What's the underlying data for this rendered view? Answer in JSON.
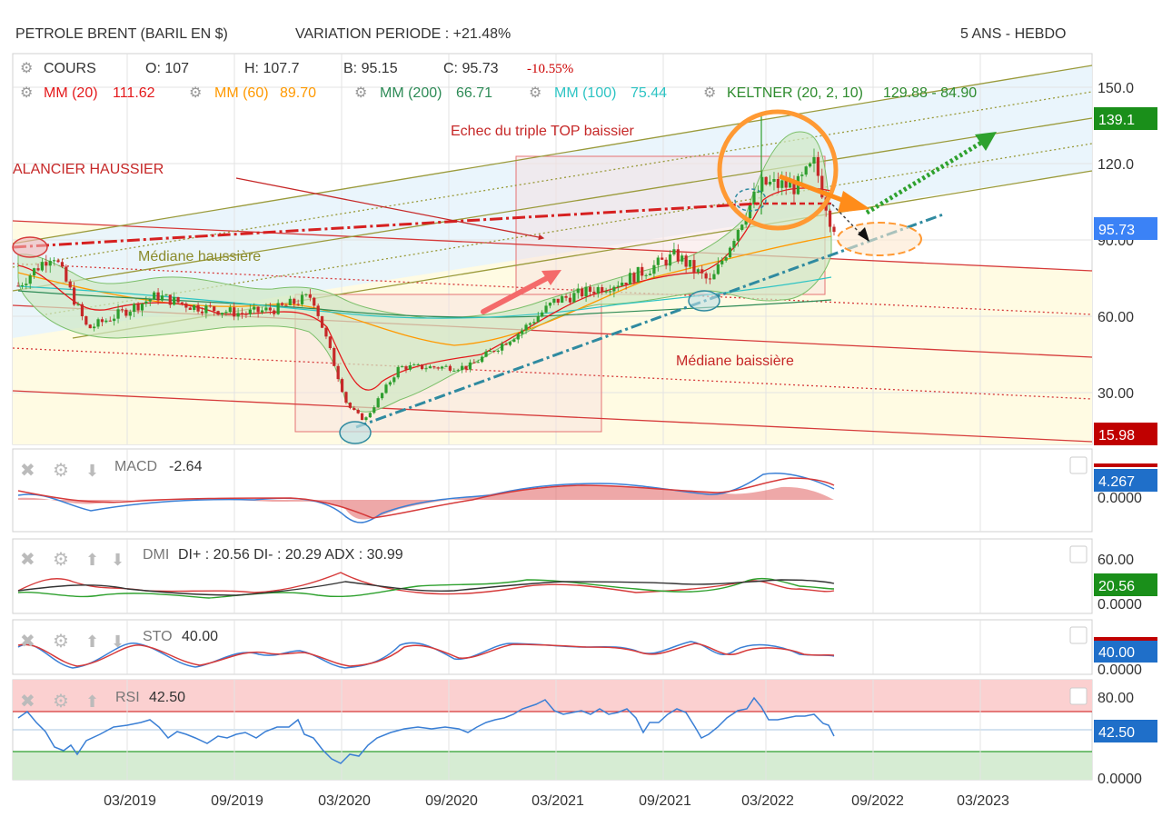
{
  "header": {
    "title": "PETROLE BRENT (BARIL EN $)",
    "variation": "VARIATION PERIODE : +21.48%",
    "period": "5 ANS - HEBDO"
  },
  "colors": {
    "candle_up": "#2e9e2e",
    "candle_down": "#c62828",
    "mm20": "#e41a1c",
    "mm60": "#ff9900",
    "mm200": "#2e8b57",
    "mm100": "#2ec4c4",
    "keltner": "#2e8b2e",
    "fork_up": "#9a9a3a",
    "fork_down": "#d63a3a",
    "price_tag": "#3b82f6",
    "macd_line": "#3a7fd5",
    "signal_line": "#d63a3a",
    "di_plus": "#2ea12e",
    "di_minus": "#d63a3a",
    "adx": "#333333",
    "rsi_line": "#3a7fd5"
  },
  "main_legend": {
    "cours_label": "COURS",
    "open": "O: 107",
    "high": "H: 107.7",
    "low": "B: 95.15",
    "close": "C: 95.73",
    "change": "-10.55%",
    "mm20": "MM (20)",
    "mm20_val": "111.62",
    "mm60": "MM (60)",
    "mm60_val": "89.70",
    "mm200": "MM (200)",
    "mm200_val": "66.71",
    "mm100": "MM (100)",
    "mm100_val": "75.44",
    "keltner": "KELTNER (20, 2, 10)",
    "keltner_val": "129.88 - 84.90"
  },
  "annotations": {
    "balancier": "ALANCIER HAUSSIER",
    "echec": "Echec du triple TOP baissier",
    "mediane_h": "Médiane haussière",
    "mediane_b": "Médiane baissière"
  },
  "chart_data": {
    "type": "candlestick",
    "x_start": "2018-08",
    "x_end": "2022-07",
    "x_ticks": [
      "03/2019",
      "09/2019",
      "03/2020",
      "09/2020",
      "03/2021",
      "09/2021",
      "03/2022",
      "09/2022",
      "03/2023"
    ],
    "y_ticks": [
      "150.0",
      "120.0",
      "90.00",
      "60.00",
      "30.00"
    ],
    "y_range": [
      10,
      160
    ],
    "price_tags": {
      "high": "139.1",
      "last": "95.73",
      "low": "15.98"
    },
    "close_path": [
      {
        "x": "2018-08",
        "y": 72
      },
      {
        "x": "2018-10",
        "y": 85
      },
      {
        "x": "2018-12",
        "y": 55
      },
      {
        "x": "2019-04",
        "y": 68
      },
      {
        "x": "2019-06",
        "y": 64
      },
      {
        "x": "2019-09",
        "y": 61
      },
      {
        "x": "2019-11",
        "y": 63
      },
      {
        "x": "2020-01",
        "y": 68
      },
      {
        "x": "2020-03",
        "y": 25
      },
      {
        "x": "2020-04",
        "y": 19
      },
      {
        "x": "2020-06",
        "y": 40
      },
      {
        "x": "2020-10",
        "y": 40
      },
      {
        "x": "2021-01",
        "y": 54
      },
      {
        "x": "2021-03",
        "y": 66
      },
      {
        "x": "2021-07",
        "y": 74
      },
      {
        "x": "2021-10",
        "y": 84
      },
      {
        "x": "2021-12",
        "y": 73
      },
      {
        "x": "2022-02",
        "y": 101
      },
      {
        "x": "2022-03",
        "y": 112
      },
      {
        "x": "2022-05",
        "y": 111
      },
      {
        "x": "2022-06",
        "y": 120
      },
      {
        "x": "2022-07",
        "y": 95.73
      }
    ],
    "macd": {
      "label": "MACD",
      "value": "-2.64",
      "axis": [
        "4.267",
        "0.0000"
      ]
    },
    "dmi": {
      "label": "DMI",
      "value": "DI+ : 20.56 DI- : 20.29 ADX : 30.99",
      "axis": [
        "60.00",
        "20.56",
        "0.0000"
      ]
    },
    "sto": {
      "label": "STO",
      "value": "40.00",
      "axis": [
        "40.00",
        "0.0000"
      ]
    },
    "rsi": {
      "label": "RSI",
      "value": "42.50",
      "axis": [
        "80.00",
        "42.50",
        "0.0000"
      ]
    }
  }
}
